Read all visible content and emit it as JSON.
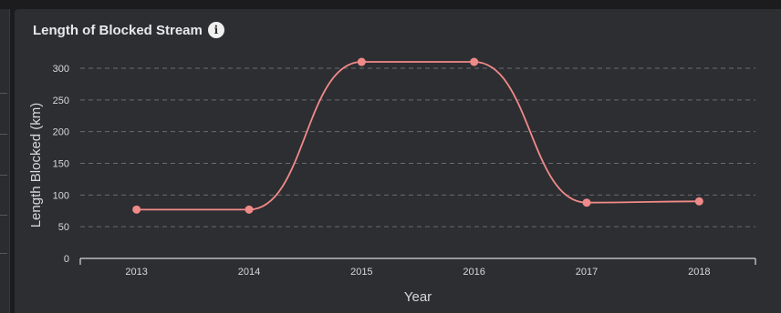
{
  "card": {
    "title": "Length of Blocked Stream",
    "info_icon": "info-icon"
  },
  "chart_data": {
    "type": "line",
    "categories": [
      "2013",
      "2014",
      "2015",
      "2016",
      "2017",
      "2018"
    ],
    "series": [
      {
        "values": [
          77,
          77,
          310,
          310,
          88,
          90
        ]
      }
    ],
    "xlabel": "Year",
    "ylabel": "Length Blocked (km)",
    "ylim": [
      0,
      300
    ],
    "yticks": [
      "0",
      "50",
      "100",
      "150",
      "200",
      "250",
      "300"
    ],
    "grid": true,
    "curve": "smooth",
    "line_color": "#f08a88"
  }
}
